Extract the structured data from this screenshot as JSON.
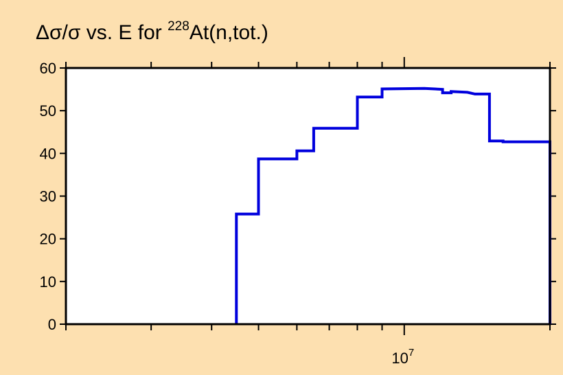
{
  "chart_data": {
    "type": "line",
    "step": true,
    "title": {
      "prefix": "Δσ/σ vs. E for ",
      "superscript": "228",
      "suffix": "At(n,tot.)"
    },
    "xlabel": "",
    "ylabel": "",
    "x_scale": "log",
    "xlim": [
      2000000,
      20000000
    ],
    "ylim": [
      0,
      60
    ],
    "y_ticks": [
      0,
      10,
      20,
      30,
      40,
      50,
      60
    ],
    "x_major_ticks": [
      {
        "value": 10000000,
        "base": "10",
        "exponent": "7"
      }
    ],
    "x_minor_ticks": [
      2000000,
      3000000,
      4000000,
      5000000,
      6000000,
      7000000,
      8000000,
      9000000,
      20000000
    ],
    "grid": false,
    "series": [
      {
        "color": "#0000dd",
        "points": [
          [
            4500000,
            0
          ],
          [
            4500000,
            25.8
          ],
          [
            5000000,
            25.8
          ],
          [
            5000000,
            38.7
          ],
          [
            6000000,
            38.7
          ],
          [
            6000000,
            40.6
          ],
          [
            6500000,
            40.6
          ],
          [
            6500000,
            45.9
          ],
          [
            8000000,
            45.9
          ],
          [
            8000000,
            53.2
          ],
          [
            9000000,
            53.2
          ],
          [
            9000000,
            55.1
          ],
          [
            11000000,
            55.2
          ],
          [
            12000000,
            55.0
          ],
          [
            12000000,
            54.2
          ],
          [
            12500000,
            54.2
          ],
          [
            12500000,
            54.5
          ],
          [
            13500000,
            54.3
          ],
          [
            14000000,
            53.9
          ],
          [
            15000000,
            53.9
          ],
          [
            15000000,
            42.9
          ],
          [
            16000000,
            42.9
          ],
          [
            16000000,
            42.7
          ],
          [
            20000000,
            42.7
          ],
          [
            20000000,
            0
          ]
        ]
      }
    ]
  }
}
